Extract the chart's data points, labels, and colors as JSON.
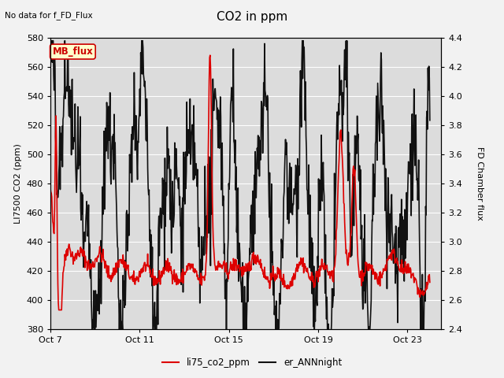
{
  "title": "CO2 in ppm",
  "top_left_text": "No data for f_FD_Flux",
  "ylabel_left": "LI7500 CO2 (ppm)",
  "ylabel_right": "FD Chamber flux",
  "ylim_left": [
    380,
    580
  ],
  "ylim_right": [
    2.4,
    4.4
  ],
  "yticks_left": [
    380,
    400,
    420,
    440,
    460,
    480,
    500,
    520,
    540,
    560,
    580
  ],
  "yticks_right": [
    2.4,
    2.6,
    2.8,
    3.0,
    3.2,
    3.4,
    3.6,
    3.8,
    4.0,
    4.2,
    4.4
  ],
  "xtick_labels": [
    "Oct 7",
    "Oct 11",
    "Oct 15",
    "Oct 19",
    "Oct 23"
  ],
  "xtick_positions": [
    0,
    4,
    8,
    12,
    16
  ],
  "xlim": [
    0,
    17.5
  ],
  "legend_entries": [
    {
      "label": "li75_co2_ppm",
      "color": "#dd0000",
      "lw": 1.2
    },
    {
      "label": "er_ANNnight",
      "color": "#111111",
      "lw": 1.2
    }
  ],
  "mb_flux_box": {
    "text": "MB_flux",
    "facecolor": "#ffffcc",
    "edgecolor": "#cc0000",
    "textcolor": "#cc0000"
  },
  "fig_bg_color": "#f2f2f2",
  "plot_bg_color": "#dcdcdc",
  "grid_color": "#ffffff",
  "seed": 42
}
